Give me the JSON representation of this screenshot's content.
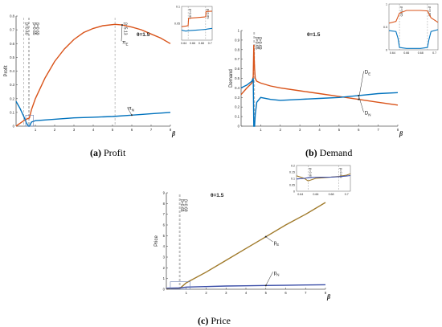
{
  "captions": {
    "a": {
      "letter": "(a)",
      "label": "Profit"
    },
    "b": {
      "letter": "(b)",
      "label": "Demand"
    },
    "c": {
      "letter": "(c)",
      "label": "Price"
    }
  },
  "colors": {
    "series_E": "#d95319",
    "series_N": "#0072bd",
    "price_E": "#a07a2a",
    "price_N": "#3c4fa8"
  },
  "chart_data": [
    {
      "id": "profit",
      "type": "line",
      "title": "",
      "xlabel": "β",
      "ylabel": "Profit",
      "annotation": "θ=1.5",
      "xlim": [
        0,
        8
      ],
      "ylim": [
        0,
        0.8
      ],
      "xticks": [
        "1",
        "2",
        "3",
        "4",
        "5",
        "6",
        "7",
        "8"
      ],
      "yticks": [
        "0",
        "0.1",
        "0.2",
        "0.3",
        "0.4",
        "0.5",
        "0.6",
        "0.7",
        "0.8"
      ],
      "series": [
        {
          "name": "π_E",
          "label_main": "π",
          "label_sub": "E",
          "x": [
            0.0,
            0.2,
            0.4,
            0.6,
            0.69,
            0.8,
            1.0,
            1.5,
            2.0,
            2.5,
            3.0,
            3.5,
            4.0,
            4.5,
            5.13,
            5.5,
            6.0,
            6.5,
            7.0,
            7.5,
            8.0
          ],
          "y": [
            0.0,
            0.02,
            0.04,
            0.055,
            0.06,
            0.12,
            0.2,
            0.35,
            0.47,
            0.56,
            0.63,
            0.68,
            0.71,
            0.73,
            0.74,
            0.735,
            0.72,
            0.7,
            0.67,
            0.64,
            0.6
          ]
        },
        {
          "name": "π_N",
          "label_main": "π",
          "label_sub": "N",
          "x": [
            0.0,
            0.2,
            0.4,
            0.55,
            0.65,
            0.69,
            0.8,
            1.0,
            2.0,
            3.0,
            4.0,
            5.0,
            6.0,
            7.0,
            8.0
          ],
          "y": [
            0.18,
            0.13,
            0.07,
            0.02,
            0.0,
            0.0,
            0.03,
            0.04,
            0.05,
            0.06,
            0.065,
            0.07,
            0.08,
            0.09,
            0.1
          ]
        }
      ],
      "vlines": [
        {
          "x": 0.4,
          "label": "β=0.40"
        },
        {
          "x": 0.65,
          "label": "β=0.65"
        },
        {
          "x": 0.69,
          "label": "β=0.69"
        },
        {
          "x": 5.13,
          "label": "β=5.13"
        }
      ],
      "inset": {
        "xlim": [
          0.635,
          0.705
        ],
        "ylim": [
          0,
          0.1
        ],
        "xticks": [
          "0.64",
          "0.66",
          "0.68",
          "0.7"
        ],
        "yticks": [
          "0.05",
          "0.1"
        ],
        "vlines": [
          {
            "x": 0.65,
            "label": "β=0.65"
          },
          {
            "x": 0.69,
            "label": "β=0.69"
          }
        ],
        "series": [
          {
            "name": "π_E",
            "x": [
              0.635,
              0.645,
              0.65,
              0.651,
              0.66,
              0.67,
              0.68,
              0.689,
              0.69,
              0.691,
              0.705
            ],
            "y": [
              0.04,
              0.042,
              0.043,
              0.065,
              0.066,
              0.067,
              0.068,
              0.069,
              0.07,
              0.085,
              0.086
            ]
          },
          {
            "name": "π_N",
            "x": [
              0.635,
              0.64,
              0.645,
              0.65,
              0.66,
              0.67,
              0.68,
              0.69,
              0.695,
              0.7,
              0.705
            ],
            "y": [
              0.03,
              0.028,
              0.027,
              0.028,
              0.029,
              0.03,
              0.031,
              0.032,
              0.033,
              0.034,
              0.035
            ]
          }
        ]
      }
    },
    {
      "id": "demand",
      "type": "line",
      "title": "",
      "xlabel": "β",
      "ylabel": "Demand",
      "annotation": "θ=1.5",
      "xlim": [
        0,
        8
      ],
      "ylim": [
        0,
        1
      ],
      "xticks": [
        "1",
        "2",
        "3",
        "4",
        "5",
        "6",
        "7",
        "8"
      ],
      "yticks": [
        "0",
        "0.1",
        "0.2",
        "0.3",
        "0.4",
        "0.5",
        "0.6",
        "0.7",
        "0.8",
        "0.9",
        "1"
      ],
      "series": [
        {
          "name": "D_E",
          "label_main": "D",
          "label_sub": "E",
          "x": [
            0.0,
            0.3,
            0.55,
            0.62,
            0.65,
            0.67,
            0.69,
            0.72,
            0.8,
            1.0,
            1.5,
            2.0,
            3.0,
            4.0,
            5.0,
            6.0,
            7.0,
            8.0
          ],
          "y": [
            0.33,
            0.4,
            0.45,
            0.52,
            0.85,
            0.7,
            0.6,
            0.5,
            0.47,
            0.45,
            0.42,
            0.4,
            0.37,
            0.34,
            0.31,
            0.28,
            0.25,
            0.22
          ]
        },
        {
          "name": "D_N",
          "label_main": "D",
          "label_sub": "N",
          "x": [
            0.0,
            0.3,
            0.55,
            0.62,
            0.65,
            0.69,
            0.72,
            0.8,
            1.0,
            1.5,
            2.0,
            3.0,
            4.0,
            5.0,
            6.0,
            7.0,
            8.0
          ],
          "y": [
            0.4,
            0.43,
            0.47,
            0.5,
            0.0,
            0.0,
            0.12,
            0.25,
            0.3,
            0.28,
            0.27,
            0.28,
            0.29,
            0.3,
            0.32,
            0.34,
            0.35
          ]
        }
      ],
      "vlines": [
        {
          "x": 0.65,
          "label": "β=0.65"
        },
        {
          "x": 0.69,
          "label": "β=0.69"
        }
      ],
      "inset": {
        "xlim": [
          0.635,
          0.705
        ],
        "ylim": [
          0,
          1
        ],
        "xticks": [
          "0.64",
          "0.66",
          "0.68",
          "0.7"
        ],
        "yticks": [
          "0",
          "0.5",
          "1"
        ],
        "vlines": [
          {
            "x": 0.65,
            "label": "β=0.65"
          },
          {
            "x": 0.69,
            "label": "β=0.69"
          }
        ],
        "series": [
          {
            "name": "D_E",
            "x": [
              0.635,
              0.645,
              0.65,
              0.66,
              0.67,
              0.68,
              0.69,
              0.695,
              0.705
            ],
            "y": [
              0.58,
              0.62,
              0.8,
              0.86,
              0.86,
              0.86,
              0.85,
              0.7,
              0.6
            ]
          },
          {
            "name": "D_N",
            "x": [
              0.635,
              0.645,
              0.648,
              0.65,
              0.66,
              0.67,
              0.68,
              0.69,
              0.692,
              0.695,
              0.705
            ],
            "y": [
              0.42,
              0.4,
              0.25,
              0.05,
              0.03,
              0.03,
              0.03,
              0.05,
              0.22,
              0.4,
              0.44
            ]
          }
        ]
      }
    },
    {
      "id": "price",
      "type": "line",
      "title": "",
      "xlabel": "β",
      "ylabel": "Price",
      "annotation": "θ=1.5",
      "xlim": [
        0,
        8
      ],
      "ylim": [
        0,
        9
      ],
      "xticks": [
        "1",
        "2",
        "3",
        "4",
        "5",
        "6",
        "7",
        "8"
      ],
      "yticks": [
        "0",
        "1",
        "2",
        "3",
        "4",
        "5",
        "6",
        "7",
        "8",
        "9"
      ],
      "series": [
        {
          "name": "p_E",
          "label_main": "p",
          "label_sub": "E",
          "x": [
            0.0,
            0.5,
            0.69,
            1.0,
            2.0,
            3.0,
            4.0,
            5.0,
            6.0,
            7.0,
            8.0
          ],
          "y": [
            0.05,
            0.08,
            0.1,
            0.6,
            1.6,
            2.7,
            3.8,
            4.9,
            6.0,
            7.0,
            8.1
          ]
        },
        {
          "name": "p_N",
          "label_main": "p",
          "label_sub": "N",
          "x": [
            0.0,
            0.5,
            0.69,
            1.0,
            2.0,
            3.0,
            4.0,
            5.0,
            6.0,
            7.0,
            8.0
          ],
          "y": [
            0.1,
            0.11,
            0.12,
            0.2,
            0.25,
            0.3,
            0.32,
            0.35,
            0.37,
            0.4,
            0.42
          ]
        }
      ],
      "vlines": [
        {
          "x": 0.65,
          "label": "β=0.65"
        },
        {
          "x": 0.69,
          "label": "β=0.69"
        }
      ],
      "inset": {
        "xlim": [
          0.635,
          0.705
        ],
        "ylim": [
          0,
          0.2
        ],
        "xticks": [
          "0.64",
          "0.66",
          "0.68",
          "0.7"
        ],
        "yticks": [
          "0",
          "0.05",
          "0.1",
          "0.15",
          "0.2"
        ],
        "vlines": [
          {
            "x": 0.65,
            "label": "β=0.65"
          },
          {
            "x": 0.69,
            "label": "β=0.69"
          }
        ],
        "series": [
          {
            "name": "p_E",
            "x": [
              0.635,
              0.645,
              0.65,
              0.66,
              0.67,
              0.68,
              0.69,
              0.7,
              0.705
            ],
            "y": [
              0.12,
              0.1,
              0.08,
              0.1,
              0.105,
              0.11,
              0.115,
              0.125,
              0.135
            ]
          },
          {
            "name": "p_N",
            "x": [
              0.635,
              0.645,
              0.65,
              0.66,
              0.67,
              0.68,
              0.69,
              0.7,
              0.705
            ],
            "y": [
              0.095,
              0.1,
              0.105,
              0.108,
              0.109,
              0.11,
              0.113,
              0.118,
              0.122
            ]
          }
        ]
      }
    }
  ]
}
